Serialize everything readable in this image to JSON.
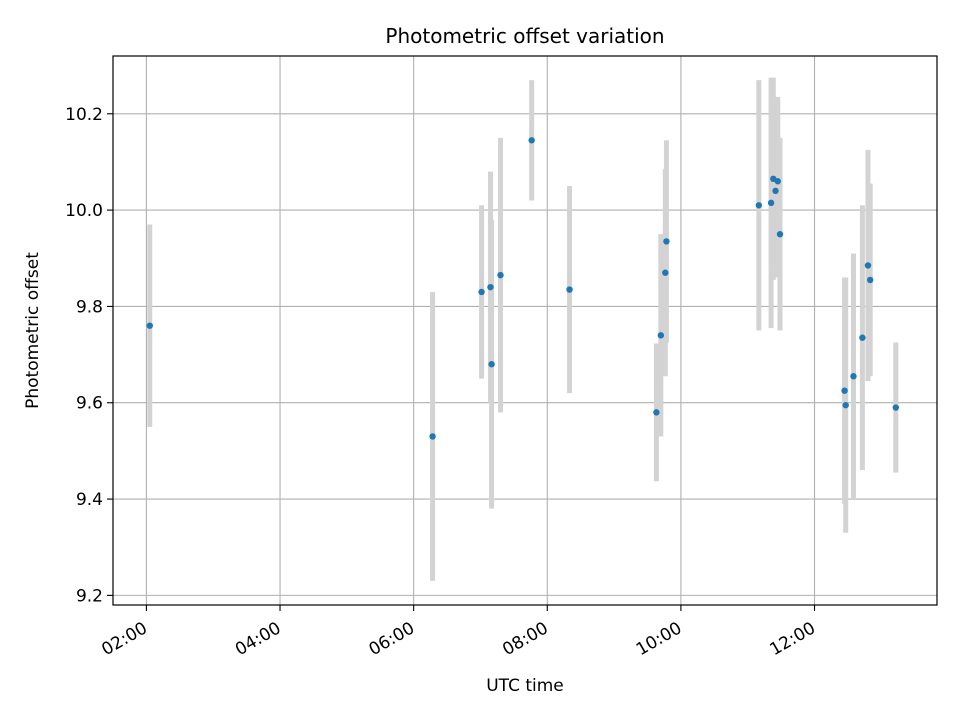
{
  "chart_data": {
    "type": "scatter",
    "title": "Photometric offset variation",
    "xlabel": "UTC time",
    "ylabel": "Photometric offset",
    "x_tick_labels": [
      "02:00",
      "04:00",
      "06:00",
      "08:00",
      "10:00",
      "12:00"
    ],
    "x_ticks": [
      "02:00",
      "04:00",
      "06:00",
      "08:00",
      "10:00",
      "12:00"
    ],
    "y_ticks": [
      9.2,
      9.4,
      9.6,
      9.8,
      10.0,
      10.2
    ],
    "y_tick_labels": [
      "9.2",
      "9.4",
      "9.6",
      "9.8",
      "10.0",
      "10.2"
    ],
    "xlim": [
      "01:30",
      "13:50"
    ],
    "ylim": [
      9.18,
      10.32
    ],
    "grid": true,
    "series": [
      {
        "marker_color": "#1f77b4",
        "errorbar_color": "#d3d3d3",
        "points": [
          {
            "x": "02:03",
            "y": 9.76,
            "err": 0.21
          },
          {
            "x": "06:17",
            "y": 9.53,
            "err": 0.3
          },
          {
            "x": "07:01",
            "y": 9.83,
            "err": 0.18
          },
          {
            "x": "07:09",
            "y": 9.84,
            "err": 0.24
          },
          {
            "x": "07:10",
            "y": 9.68,
            "err": 0.3
          },
          {
            "x": "07:18",
            "y": 9.865,
            "err": 0.285
          },
          {
            "x": "07:46",
            "y": 10.145,
            "err": 0.125
          },
          {
            "x": "08:20",
            "y": 9.835,
            "err": 0.215
          },
          {
            "x": "09:38",
            "y": 9.58,
            "err": 0.143
          },
          {
            "x": "09:42",
            "y": 9.74,
            "err": 0.21
          },
          {
            "x": "09:46",
            "y": 9.87,
            "err": 0.215
          },
          {
            "x": "09:47",
            "y": 9.935,
            "err": 0.21
          },
          {
            "x": "11:10",
            "y": 10.01,
            "err": 0.26
          },
          {
            "x": "11:21",
            "y": 10.015,
            "err": 0.26
          },
          {
            "x": "11:23",
            "y": 10.065,
            "err": 0.21
          },
          {
            "x": "11:25",
            "y": 10.04,
            "err": 0.18
          },
          {
            "x": "11:27",
            "y": 10.06,
            "err": 0.175
          },
          {
            "x": "11:29",
            "y": 9.95,
            "err": 0.2
          },
          {
            "x": "12:27",
            "y": 9.625,
            "err": 0.235
          },
          {
            "x": "12:28",
            "y": 9.595,
            "err": 0.265
          },
          {
            "x": "12:35",
            "y": 9.655,
            "err": 0.255
          },
          {
            "x": "12:43",
            "y": 9.735,
            "err": 0.275
          },
          {
            "x": "12:48",
            "y": 9.885,
            "err": 0.24
          },
          {
            "x": "12:50",
            "y": 9.855,
            "err": 0.2
          },
          {
            "x": "13:13",
            "y": 9.59,
            "err": 0.135
          }
        ]
      }
    ]
  }
}
